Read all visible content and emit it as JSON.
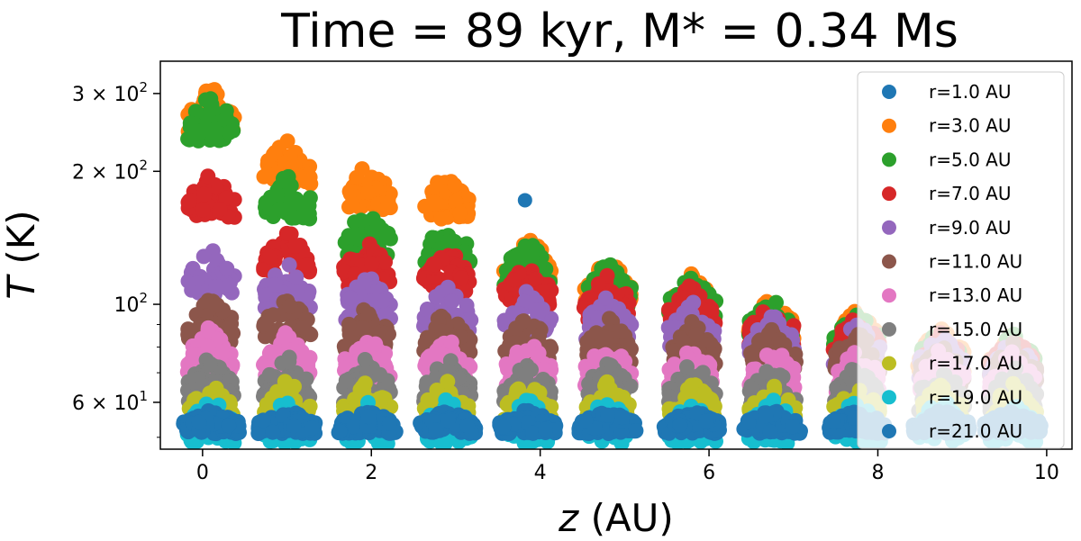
{
  "chart_data": {
    "type": "scatter",
    "title": "Time = 89 kyr, M* = 0.34 Ms",
    "xlabel_var": "z",
    "xlabel_unit": " (AU)",
    "ylabel_var": "T",
    "ylabel_unit": " (K)",
    "xlim": [
      -0.5,
      10.3
    ],
    "ylim": [
      47,
      355
    ],
    "yscale": "log",
    "x_ticks": [
      0,
      2,
      4,
      6,
      8,
      10
    ],
    "x_tick_labels": [
      "0",
      "2",
      "4",
      "6",
      "8",
      "10"
    ],
    "y_ticks": [
      60,
      100,
      200,
      300
    ],
    "y_tick_labels": [
      {
        "base": "6 × 10",
        "exp": "1"
      },
      {
        "base": "10",
        "exp": "2"
      },
      {
        "base": "2 × 10",
        "exp": "2"
      },
      {
        "base": "3 × 10",
        "exp": "2"
      }
    ],
    "legend_position": "right",
    "cluster_z": [
      0.1,
      1.0,
      1.95,
      2.9,
      3.85,
      4.8,
      5.8,
      6.75,
      7.75,
      8.75,
      9.6
    ],
    "series": [
      {
        "name": "r=1.0 AU",
        "color": "#1f77b4",
        "points": [
          [
            3.82,
            172
          ]
        ]
      },
      {
        "name": "r=3.0 AU",
        "color": "#ff7f0e",
        "peaks": [
          315,
          240,
          210,
          200,
          145,
          128,
          118,
          105,
          98,
          90,
          88
        ]
      },
      {
        "name": "r=5.0 AU",
        "color": "#2ca02c",
        "peaks": [
          300,
          200,
          165,
          155,
          140,
          125,
          117,
          105,
          97,
          89,
          87
        ]
      },
      {
        "name": "r=7.0 AU",
        "color": "#d62728",
        "peaks": [
          200,
          150,
          140,
          135,
          125,
          118,
          112,
          102,
          95,
          88,
          86
        ]
      },
      {
        "name": "r=9.0 AU",
        "color": "#9467bd",
        "peaks": [
          135,
          125,
          118,
          112,
          108,
          106,
          102,
          96,
          92,
          86,
          84
        ]
      },
      {
        "name": "r=11.0 AU",
        "color": "#8c564b",
        "peaks": [
          105,
          105,
          100,
          98,
          95,
          94,
          92,
          90,
          88,
          84,
          82
        ]
      },
      {
        "name": "r=13.0 AU",
        "color": "#e377c2",
        "peaks": [
          90,
          88,
          86,
          85,
          84,
          83,
          82,
          81,
          80,
          80,
          79
        ]
      },
      {
        "name": "r=15.0 AU",
        "color": "#7f7f7f",
        "peaks": [
          77,
          77,
          76,
          76,
          75,
          75,
          75,
          74,
          74,
          73,
          73
        ]
      },
      {
        "name": "r=17.0 AU",
        "color": "#bcbd22",
        "peaks": [
          68,
          68,
          68,
          68,
          68,
          68,
          68,
          67,
          67,
          67,
          67
        ]
      },
      {
        "name": "r=19.0 AU",
        "color": "#17becf",
        "peaks": [
          62,
          62,
          62,
          62,
          62,
          62,
          62,
          62,
          62,
          62,
          62
        ]
      },
      {
        "name": "r=21.0 AU",
        "color": "#1f77b4",
        "peaks": [
          58,
          58,
          58,
          58,
          58,
          58,
          58,
          58,
          58,
          58,
          58
        ]
      }
    ]
  }
}
